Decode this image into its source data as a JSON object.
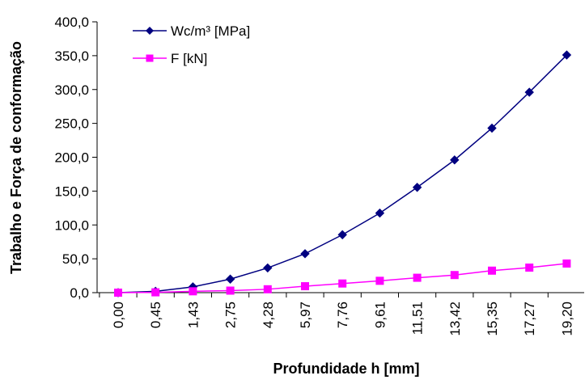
{
  "chart_data": {
    "type": "line",
    "categories": [
      "0,00",
      "0,45",
      "1,43",
      "2,75",
      "4,28",
      "5,97",
      "7,76",
      "9,61",
      "11,51",
      "13,42",
      "15,35",
      "17,27",
      "19,20"
    ],
    "series": [
      {
        "name": "Wc/m³ [MPa]",
        "color": "#000080",
        "marker": "diamond",
        "values": [
          0.0,
          2.0,
          8.5,
          20.0,
          36.5,
          57.5,
          85.5,
          117.5,
          155.5,
          196.0,
          243.0,
          296.0,
          351.0
        ]
      },
      {
        "name": "F [kN]",
        "color": "#ff00ff",
        "marker": "square",
        "values": [
          0.0,
          0.5,
          2.0,
          3.0,
          5.0,
          9.5,
          13.5,
          17.5,
          22.0,
          26.0,
          32.5,
          37.0,
          43.0
        ]
      }
    ],
    "ylim": [
      0,
      400
    ],
    "yticks": [
      0,
      50,
      100,
      150,
      200,
      250,
      300,
      350,
      400
    ],
    "ytick_labels": [
      "0,0",
      "50,0",
      "100,0",
      "150,0",
      "200,0",
      "250,0",
      "300,0",
      "350,0",
      "400,0"
    ],
    "xlabel": "Profundidade h [mm]",
    "ylabel": "Trabalho e Força de conformação",
    "title": "",
    "grid": false,
    "legend_position": "top-left"
  }
}
